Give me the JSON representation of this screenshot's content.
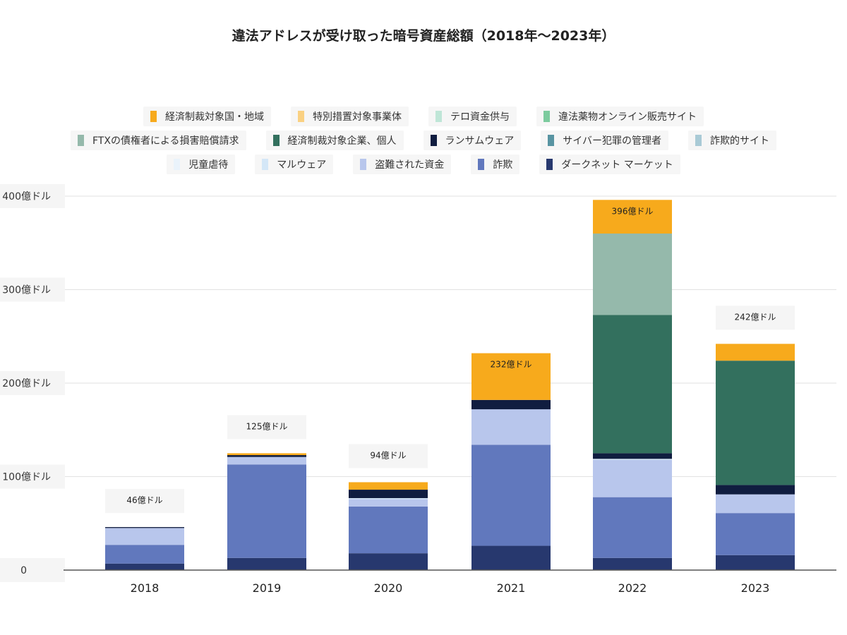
{
  "chart_data": {
    "type": "bar",
    "stacked": true,
    "title": "違法アドレスが受け取った暗号資産総額（2018年～2023年）",
    "xlabel": "",
    "ylabel": "",
    "ylim": [
      0,
      400
    ],
    "y_ticks": [
      {
        "value": 0,
        "label": "0"
      },
      {
        "value": 100,
        "label": "100億ドル"
      },
      {
        "value": 200,
        "label": "200億ドル"
      },
      {
        "value": 300,
        "label": "300億ドル"
      },
      {
        "value": 400,
        "label": "400億ドル"
      }
    ],
    "categories": [
      "2018",
      "2019",
      "2020",
      "2021",
      "2022",
      "2023"
    ],
    "totals": [
      46,
      125,
      94,
      232,
      396,
      242
    ],
    "total_labels": [
      "46億ドル",
      "125億ドル",
      "94億ドル",
      "232億ドル",
      "396億ドル",
      "242億ドル"
    ],
    "legend_position": "top",
    "legend_rows": [
      [
        "経済制裁対象国・地域",
        "特別措置対象事業体",
        "テロ資金供与",
        "違法薬物オンライン販売サイト"
      ],
      [
        "FTXの債権者による損害賠償請求",
        "経済制裁対象企業、個人",
        "ランサムウェア",
        "サイバー犯罪の管理者",
        "詐欺的サイト"
      ],
      [
        "児童虐待",
        "マルウェア",
        "盗難された資金",
        "詐欺",
        "ダークネット マーケット"
      ]
    ],
    "series": [
      {
        "name": "ダークネット マーケット",
        "color": "#27386e",
        "values": [
          7,
          13,
          18,
          26,
          13,
          16
        ]
      },
      {
        "name": "詐欺",
        "color": "#6178bd",
        "values": [
          20,
          100,
          50,
          108,
          65,
          45
        ]
      },
      {
        "name": "盗難された資金",
        "color": "#b8c6ec",
        "values": [
          18,
          8,
          8,
          38,
          40,
          20
        ]
      },
      {
        "name": "マルウェア",
        "color": "#d4e7f7",
        "values": [
          0,
          0,
          1,
          0,
          1,
          0
        ]
      },
      {
        "name": "児童虐待",
        "color": "#eaf3fb",
        "values": [
          0,
          0,
          0,
          0,
          0,
          0
        ]
      },
      {
        "name": "詐欺的サイト",
        "color": "#a9cad6",
        "values": [
          0,
          0,
          0,
          0,
          0,
          0
        ]
      },
      {
        "name": "サイバー犯罪の管理者",
        "color": "#5894a2",
        "values": [
          0,
          0,
          0,
          0,
          0,
          0
        ]
      },
      {
        "name": "ランサムウェア",
        "color": "#101d40",
        "values": [
          1,
          2,
          9,
          10,
          6,
          10
        ]
      },
      {
        "name": "経済制裁対象企業、個人",
        "color": "#33705e",
        "values": [
          0,
          0,
          0,
          0,
          148,
          133
        ]
      },
      {
        "name": "FTXの債権者による損害賠償請求",
        "color": "#95b9ab",
        "values": [
          0,
          0,
          0,
          0,
          87,
          0
        ]
      },
      {
        "name": "違法薬物オンライン販売サイト",
        "color": "#7ccb9e",
        "values": [
          0,
          0,
          0,
          0,
          0,
          0
        ]
      },
      {
        "name": "テロ資金供与",
        "color": "#bfe6d7",
        "values": [
          0,
          0,
          0,
          0,
          0,
          0
        ]
      },
      {
        "name": "特別措置対象事業体",
        "color": "#fad182",
        "values": [
          0,
          0,
          0,
          0,
          0,
          0
        ]
      },
      {
        "name": "経済制裁対象国・地域",
        "color": "#f7aa1c",
        "values": [
          0,
          2,
          8,
          50,
          36,
          18
        ]
      }
    ]
  }
}
